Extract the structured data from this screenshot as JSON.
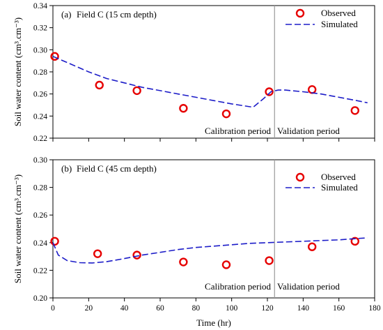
{
  "chart_data": [
    {
      "type": "scatter",
      "title": "Field C (15 cm depth)",
      "panel_letter": "(a)",
      "ylabel": "Soil water content (cm³.cm⁻³)",
      "xlim": [
        0,
        180
      ],
      "ylim": [
        0.22,
        0.34
      ],
      "xticks": [],
      "yticks": [
        "0.22",
        "0.24",
        "0.26",
        "0.28",
        "0.30",
        "0.32",
        "0.34"
      ],
      "grid": false,
      "legend_position": "top-right",
      "divider_x": 124,
      "period_labels": [
        "Calibration period",
        "Validation period"
      ],
      "series": [
        {
          "name": "Observed",
          "kind": "points",
          "color": "#e60000",
          "x": [
            1,
            26,
            47,
            73,
            97,
            121,
            145,
            169
          ],
          "y": [
            0.294,
            0.268,
            0.263,
            0.247,
            0.242,
            0.262,
            0.264,
            0.245
          ]
        },
        {
          "name": "Simulated",
          "kind": "line",
          "color": "#1c1cc8",
          "x": [
            0,
            10,
            20,
            30,
            40,
            50,
            60,
            70,
            80,
            90,
            100,
            112,
            118,
            122,
            126,
            130,
            140,
            150,
            160,
            170,
            176
          ],
          "y": [
            0.294,
            0.287,
            0.28,
            0.274,
            0.27,
            0.266,
            0.263,
            0.26,
            0.257,
            0.254,
            0.251,
            0.248,
            0.256,
            0.262,
            0.2635,
            0.2635,
            0.262,
            0.26,
            0.257,
            0.254,
            0.252
          ]
        }
      ]
    },
    {
      "type": "scatter",
      "title": "Field C (45 cm depth)",
      "panel_letter": "(b)",
      "xlabel": "Time (hr)",
      "ylabel": "Soil water content (cm³.cm⁻³)",
      "xlim": [
        0,
        180
      ],
      "ylim": [
        0.2,
        0.3
      ],
      "xticks": [
        "0",
        "20",
        "40",
        "60",
        "80",
        "100",
        "120",
        "140",
        "160",
        "180"
      ],
      "yticks": [
        "0.20",
        "0.22",
        "0.24",
        "0.26",
        "0.28",
        "0.30"
      ],
      "grid": false,
      "legend_position": "top-right",
      "divider_x": 124,
      "period_labels": [
        "Calibration period",
        "Validation period"
      ],
      "series": [
        {
          "name": "Observed",
          "kind": "points",
          "color": "#e60000",
          "x": [
            1,
            25,
            47,
            73,
            97,
            121,
            145,
            169
          ],
          "y": [
            0.241,
            0.232,
            0.231,
            0.226,
            0.224,
            0.227,
            0.237,
            0.241
          ]
        },
        {
          "name": "Simulated",
          "kind": "line",
          "color": "#1c1cc8",
          "x": [
            0,
            3,
            8,
            15,
            22,
            30,
            40,
            50,
            60,
            70,
            80,
            90,
            100,
            110,
            120,
            130,
            140,
            150,
            160,
            170,
            176
          ],
          "y": [
            0.24,
            0.231,
            0.227,
            0.2255,
            0.2253,
            0.2262,
            0.2285,
            0.231,
            0.233,
            0.235,
            0.2365,
            0.2375,
            0.2385,
            0.2395,
            0.24,
            0.2405,
            0.241,
            0.2415,
            0.242,
            0.243,
            0.2435
          ]
        }
      ]
    }
  ]
}
